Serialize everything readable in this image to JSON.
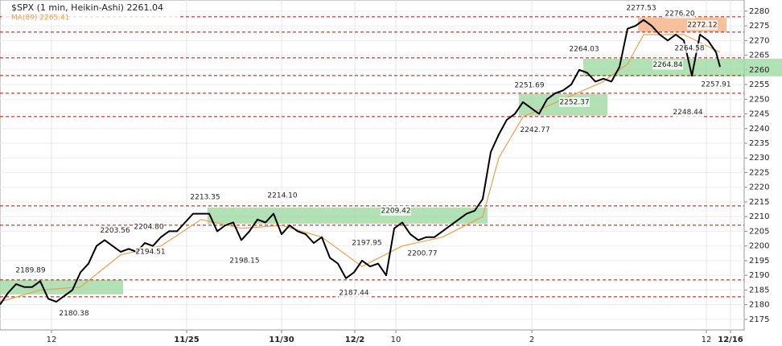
{
  "chart_data": {
    "type": "line",
    "title": "$SPX (1 min, Heikin-Ashi) 2261.04",
    "subtitle": "MA(89) 2265.41",
    "xlim": [
      0,
      92.5
    ],
    "ylim": [
      2171.4,
      2283.8
    ],
    "yticks": [
      2175,
      2180,
      2185,
      2190,
      2195,
      2200,
      2205,
      2210,
      2215,
      2220,
      2225,
      2230,
      2235,
      2240,
      2245,
      2250,
      2255,
      2260,
      2265,
      2270,
      2275,
      2280
    ],
    "xticks": [
      {
        "value": 6.4,
        "label": "12"
      },
      {
        "value": 23.2,
        "label": "11/25",
        "bold": true
      },
      {
        "value": 35,
        "label": "11/30",
        "bold": true
      },
      {
        "value": 44.1,
        "label": "12/2",
        "bold": true
      },
      {
        "value": 49.2,
        "label": "10"
      },
      {
        "value": 66.1,
        "label": "2"
      },
      {
        "value": 87.8,
        "label": "12"
      },
      {
        "value": 90.8,
        "label": "12/16",
        "bold": true
      }
    ],
    "grid": true,
    "series": [
      {
        "name": "$SPX",
        "color": "#000000",
        "x": [
          0,
          1,
          2,
          3,
          4,
          5,
          6,
          7,
          8,
          9,
          10,
          11,
          12,
          13,
          14,
          15,
          16,
          17,
          18,
          19,
          20,
          21,
          22,
          23,
          24,
          25,
          26,
          27,
          28,
          29,
          30,
          31,
          32,
          33,
          34,
          35,
          36,
          37,
          38,
          39,
          40,
          41,
          42,
          43,
          44,
          45,
          46,
          47,
          48,
          49,
          50,
          51,
          52,
          53,
          54,
          55,
          56,
          57,
          58,
          59,
          60,
          61,
          62,
          63,
          64,
          65,
          66,
          67,
          68,
          69,
          70,
          71,
          72,
          73,
          74,
          75,
          76,
          77,
          78,
          79,
          80,
          81,
          82,
          83,
          84,
          85,
          86,
          87,
          88,
          89,
          89.5
        ],
        "values": [
          2180,
          2184,
          2187,
          2186,
          2186,
          2188,
          2182,
          2181,
          2183,
          2185,
          2191,
          2194,
          2200,
          2202,
          2200,
          2198,
          2199,
          2198,
          2201,
          2200,
          2203,
          2205,
          2205,
          2208,
          2211,
          2211,
          2211,
          2205,
          2207,
          2208,
          2202,
          2205,
          2209,
          2208,
          2211,
          2204,
          2207,
          2205,
          2204,
          2201,
          2203,
          2196,
          2194,
          2189,
          2191,
          2195,
          2193,
          2194,
          2190,
          2206,
          2208,
          2204,
          2202,
          2203,
          2203,
          2205,
          2207,
          2209,
          2211,
          2212,
          2216,
          2232,
          2238,
          2243,
          2245,
          2249,
          2247,
          2245,
          2250,
          2252,
          2253,
          2255,
          2260,
          2259,
          2256,
          2257,
          2256,
          2261,
          2274,
          2275,
          2277,
          2275,
          2272,
          2270,
          2272,
          2270,
          2258,
          2272,
          2270,
          2266,
          2261
        ]
      },
      {
        "name": "MA(89)",
        "color": "#e8a050",
        "x": [
          0,
          5,
          10,
          15,
          20,
          25,
          30,
          35,
          40,
          45,
          50,
          55,
          60,
          62,
          65,
          70,
          75,
          78,
          80,
          85,
          89.5
        ],
        "values": [
          2181,
          2185,
          2186,
          2197,
          2200,
          2209,
          2206,
          2207,
          2203,
          2193,
          2200,
          2203,
          2210,
          2230,
          2244,
          2250,
          2256,
          2262,
          2272,
          2272,
          2266
        ]
      }
    ],
    "levels": [
      2278.08,
      2272.87,
      2264.1,
      2258.07,
      2252.04,
      2244.09,
      2213.66,
      2207.08,
      2188.44,
      2182.69
    ],
    "level_color": "#cc0000",
    "zones": [
      {
        "x": [
          0,
          15.3
        ],
        "y": [
          2183.5,
          2188.4
        ],
        "color": "#9fd9a3"
      },
      {
        "x": [
          25.8,
          60.6
        ],
        "y": [
          2207.6,
          2213.1
        ],
        "color": "#9fd9a3"
      },
      {
        "x": [
          64.5,
          75.5
        ],
        "y": [
          2244.4,
          2251.8
        ],
        "color": "#9fd9a3"
      },
      {
        "x": [
          72.5,
          97.2
        ],
        "y": [
          2257.8,
          2263.8
        ],
        "color": "#9fd9a3"
      },
      {
        "x": [
          79.3,
          90.3
        ],
        "y": [
          2272.9,
          2277.8
        ],
        "color": "#f4b183"
      }
    ],
    "annotations": [
      {
        "label": "2189.89",
        "x": 3.8,
        "y": 2191.7
      },
      {
        "label": "2180.38",
        "x": 9.2,
        "y": 2177.0
      },
      {
        "label": "2203.56",
        "x": 14.3,
        "y": 2205.2
      },
      {
        "label": "2204.80",
        "x": 18.5,
        "y": 2206.5
      },
      {
        "label": "2194.51",
        "x": 18.7,
        "y": 2198.0
      },
      {
        "label": "2213.35",
        "x": 25.5,
        "y": 2216.7
      },
      {
        "label": "2214.10",
        "x": 35.1,
        "y": 2217.2
      },
      {
        "label": "2198.15",
        "x": 30.4,
        "y": 2195.0
      },
      {
        "label": "2197.95",
        "x": 45.6,
        "y": 2201.0
      },
      {
        "label": "2187.44",
        "x": 44.0,
        "y": 2184.0
      },
      {
        "label": "2209.42",
        "x": 49.2,
        "y": 2212.0
      },
      {
        "label": "2200.77",
        "x": 52.5,
        "y": 2197.5
      },
      {
        "label": "2251.69",
        "x": 65.8,
        "y": 2254.8
      },
      {
        "label": "2242.77",
        "x": 66.5,
        "y": 2239.5
      },
      {
        "label": "2252.37",
        "x": 71.4,
        "y": 2249.0
      },
      {
        "label": "2264.03",
        "x": 72.6,
        "y": 2267.1
      },
      {
        "label": "2277.53",
        "x": 79.7,
        "y": 2281.0
      },
      {
        "label": "2276.20",
        "x": 84.5,
        "y": 2279.2
      },
      {
        "label": "2272.12",
        "x": 87.3,
        "y": 2275.3
      },
      {
        "label": "2264.58",
        "x": 85.7,
        "y": 2267.4
      },
      {
        "label": "2264.84",
        "x": 83.0,
        "y": 2261.7
      },
      {
        "label": "2257.91",
        "x": 89.0,
        "y": 2255.0
      },
      {
        "label": "2248.44",
        "x": 85.5,
        "y": 2245.5
      }
    ]
  }
}
